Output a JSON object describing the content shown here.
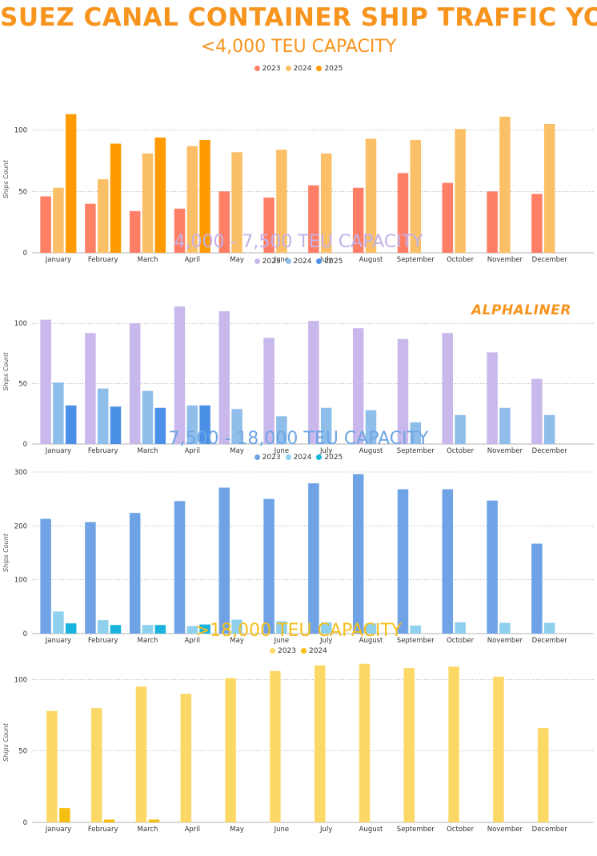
{
  "title": "SUEZ CANAL CONTAINER SHIP TRAFFIC YOY",
  "title_color": "#F7941D",
  "watermark": "ALPHALINER",
  "watermark_color": "#F7941D",
  "chart_data": [
    {
      "type": "bar",
      "title": "<4,000 TEU CAPACITY",
      "title_color": "#F7941D",
      "ylabel": "Ships Count",
      "ylim": [
        0,
        120
      ],
      "yticks": [
        0,
        50,
        100
      ],
      "grid": true,
      "legend_position": "top-center",
      "categories": [
        "January",
        "February",
        "March",
        "April",
        "May",
        "June",
        "July",
        "August",
        "September",
        "October",
        "November",
        "December"
      ],
      "series": [
        {
          "name": "2023",
          "color": "#FF7F66",
          "values": [
            46,
            40,
            34,
            36,
            50,
            45,
            55,
            53,
            65,
            57,
            50,
            48
          ]
        },
        {
          "name": "2024",
          "color": "#FBC067",
          "values": [
            53,
            60,
            81,
            87,
            82,
            84,
            81,
            93,
            92,
            101,
            111,
            105
          ]
        },
        {
          "name": "2025",
          "color": "#FF9A00",
          "values": [
            113,
            89,
            94,
            92,
            null,
            null,
            null,
            null,
            null,
            null,
            null,
            null
          ]
        }
      ]
    },
    {
      "type": "bar",
      "title": "4,000 - 7,500 TEU CAPACITY",
      "title_color": "#C3B1EA",
      "ylabel": "Ships Count",
      "ylim": [
        0,
        120
      ],
      "yticks": [
        0,
        50,
        100
      ],
      "grid": true,
      "legend_position": "top-center",
      "categories": [
        "January",
        "February",
        "March",
        "April",
        "May",
        "June",
        "July",
        "August",
        "September",
        "October",
        "November",
        "December"
      ],
      "series": [
        {
          "name": "2023",
          "color": "#C9B8EC",
          "values": [
            103,
            92,
            100,
            114,
            110,
            88,
            102,
            96,
            87,
            92,
            76,
            54
          ]
        },
        {
          "name": "2024",
          "color": "#90BEEB",
          "values": [
            51,
            46,
            44,
            32,
            29,
            23,
            30,
            28,
            18,
            24,
            30,
            24
          ]
        },
        {
          "name": "2025",
          "color": "#4A90E6",
          "values": [
            32,
            31,
            30,
            32,
            null,
            null,
            null,
            null,
            null,
            null,
            null,
            null
          ]
        }
      ]
    },
    {
      "type": "bar",
      "title": "7,500 - 18,000 TEU CAPACITY",
      "title_color": "#6EA6E4",
      "ylabel": "Ships Count",
      "ylim": [
        0,
        300
      ],
      "yticks": [
        0,
        100,
        200,
        300
      ],
      "grid": true,
      "legend_position": "top-center",
      "categories": [
        "January",
        "February",
        "March",
        "April",
        "May",
        "June",
        "July",
        "August",
        "September",
        "October",
        "November",
        "December"
      ],
      "series": [
        {
          "name": "2023",
          "color": "#6FA3E5",
          "values": [
            213,
            207,
            224,
            246,
            271,
            250,
            279,
            296,
            268,
            268,
            247,
            167
          ]
        },
        {
          "name": "2024",
          "color": "#8ED0EE",
          "values": [
            41,
            25,
            16,
            14,
            26,
            23,
            21,
            19,
            15,
            21,
            20,
            20
          ]
        },
        {
          "name": "2025",
          "color": "#19B4DD",
          "values": [
            19,
            16,
            16,
            17,
            null,
            null,
            null,
            null,
            null,
            null,
            null,
            null
          ]
        }
      ]
    },
    {
      "type": "bar",
      "title": ">18,000 TEU CAPACITY",
      "title_color": "#F5BE1E",
      "ylabel": "Ships Count",
      "ylim": [
        0,
        112
      ],
      "yticks": [
        0,
        50,
        100
      ],
      "grid": true,
      "legend_position": "top-center",
      "categories": [
        "January",
        "February",
        "March",
        "April",
        "May",
        "June",
        "July",
        "August",
        "September",
        "October",
        "November",
        "December"
      ],
      "series": [
        {
          "name": "2023",
          "color": "#FCD866",
          "values": [
            78,
            80,
            95,
            90,
            101,
            106,
            110,
            111,
            108,
            109,
            102,
            66
          ]
        },
        {
          "name": "2024",
          "color": "#F5BE12",
          "values": [
            10,
            2,
            2,
            null,
            null,
            null,
            null,
            null,
            null,
            null,
            null,
            null
          ]
        }
      ]
    }
  ]
}
